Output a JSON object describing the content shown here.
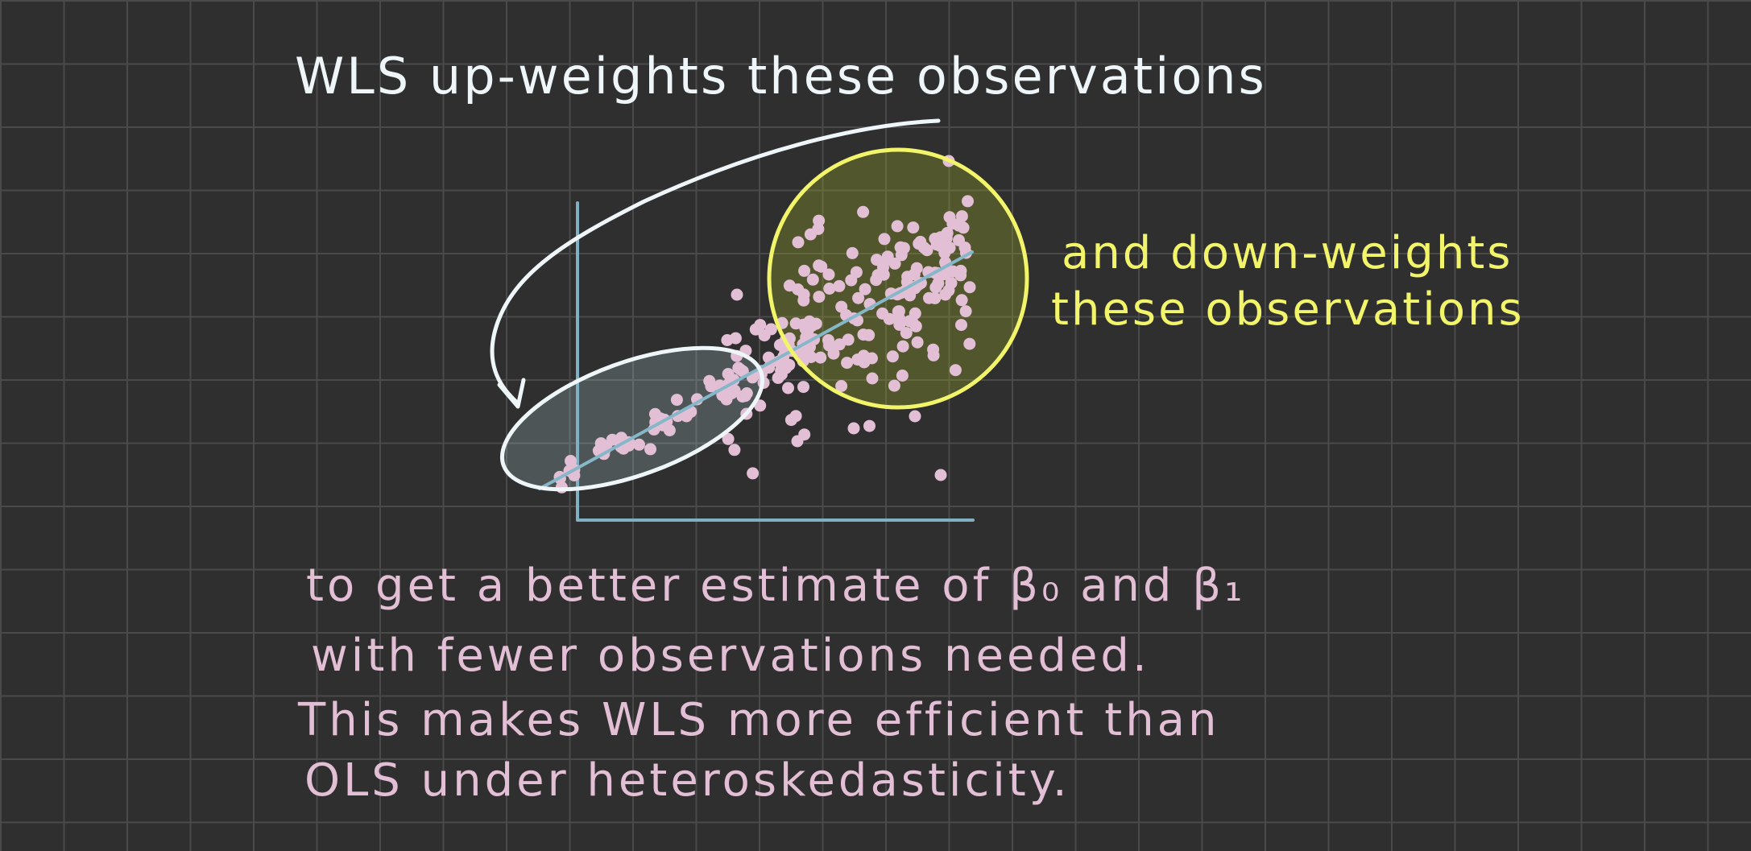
{
  "colors": {
    "background": "#2f2f2f",
    "grid": "#4a4a4a",
    "white_ink": "#eef6f9",
    "yellow_ink": "#f2f46a",
    "pink_ink": "#e3bfd6",
    "axis": "#7fb0c4",
    "fit_line": "#86b7c9"
  },
  "heading": "WLS up-weights these observations",
  "note": {
    "line1": "and down-weights",
    "line2": "these observations"
  },
  "body": {
    "line1": "to get a better estimate of β₀ and β₁",
    "line2": "with fewer observations needed.",
    "line3": "This makes WLS more efficient than",
    "line4": "OLS under heteroskedasticity."
  },
  "icons": [
    "curved-arrow-icon"
  ]
}
